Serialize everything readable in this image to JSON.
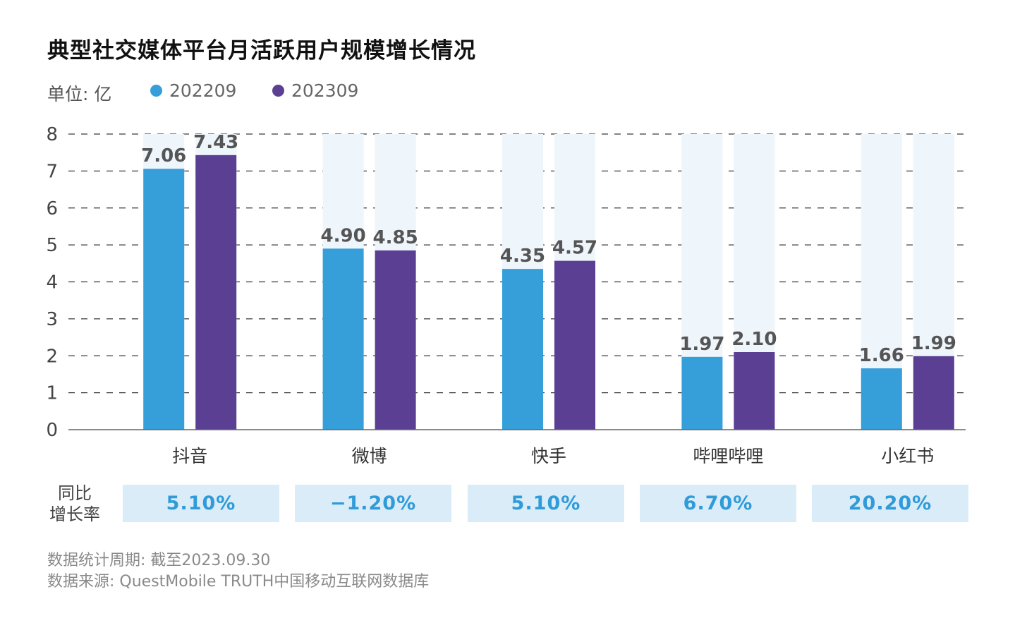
{
  "title": "典型社交媒体平台月活跃用户规模增长情况",
  "unit_label": "单位: 亿",
  "legend": [
    {
      "name": "202209",
      "color": "#369ed9"
    },
    {
      "name": "202309",
      "color": "#5b3f93"
    }
  ],
  "chart_data": {
    "type": "bar",
    "title": "典型社交媒体平台月活跃用户规模增长情况",
    "ylabel": "单位: 亿",
    "ylim": [
      0,
      8
    ],
    "yticks": [
      "0",
      "1",
      "2",
      "3",
      "4",
      "5",
      "6",
      "7",
      "8"
    ],
    "grid": true,
    "categories": [
      "抖音",
      "微博",
      "快手",
      "哔哩哔哩",
      "小红书"
    ],
    "series": [
      {
        "name": "202209",
        "color": "#369ed9",
        "values": [
          7.06,
          4.9,
          4.35,
          1.97,
          1.66
        ],
        "labels": [
          "7.06",
          "4.90",
          "4.35",
          "1.97",
          "1.66"
        ]
      },
      {
        "name": "202309",
        "color": "#5b3f93",
        "values": [
          7.43,
          4.85,
          4.57,
          2.1,
          1.99
        ],
        "labels": [
          "7.43",
          "4.85",
          "4.57",
          "2.10",
          "1.99"
        ]
      }
    ],
    "background_bar_color": "#eef5fb"
  },
  "growth": {
    "header_line1": "同比",
    "header_line2": "增长率",
    "values": [
      "5.10%",
      "−1.20%",
      "5.10%",
      "6.70%",
      "20.20%"
    ]
  },
  "notes": {
    "period": "数据统计周期: 截至2023.09.30",
    "source": "数据来源: QuestMobile TRUTH中国移动互联网数据库"
  }
}
